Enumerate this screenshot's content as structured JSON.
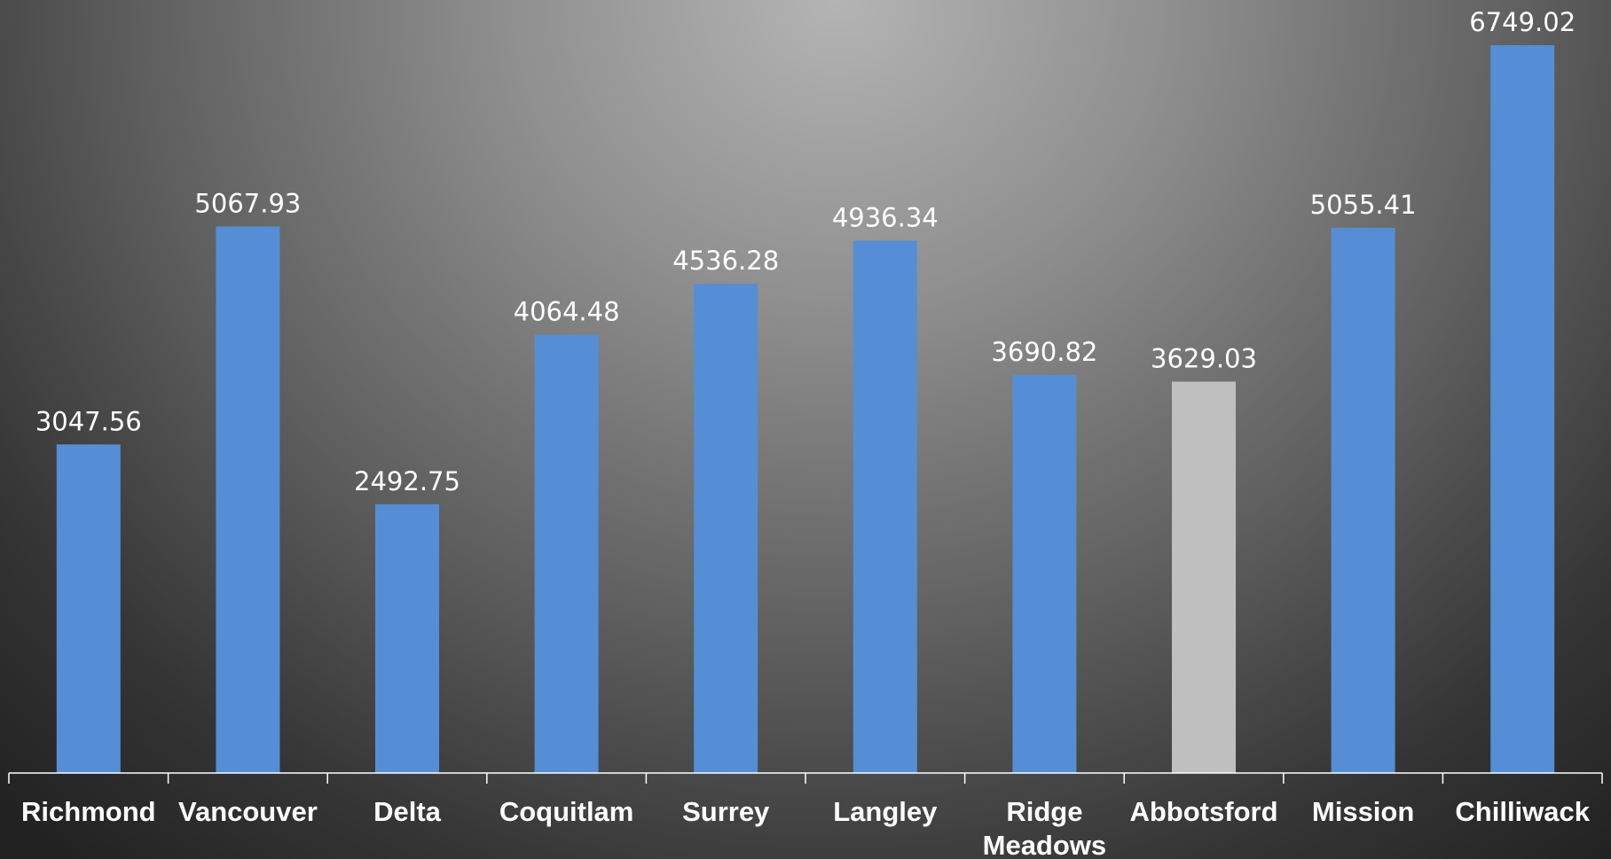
{
  "chart_data": {
    "type": "bar",
    "categories": [
      "Richmond",
      "Vancouver",
      "Delta",
      "Coquitlam",
      "Surrey",
      "Langley",
      "Ridge Meadows",
      "Abbotsford",
      "Mission",
      "Chilliwack"
    ],
    "category_lines": [
      [
        "Richmond"
      ],
      [
        "Vancouver"
      ],
      [
        "Delta"
      ],
      [
        "Coquitlam"
      ],
      [
        "Surrey"
      ],
      [
        "Langley"
      ],
      [
        "Ridge",
        "Meadows"
      ],
      [
        "Abbotsford"
      ],
      [
        "Mission"
      ],
      [
        "Chilliwack"
      ]
    ],
    "values": [
      3047.56,
      5067.93,
      2492.75,
      4064.48,
      4536.28,
      4936.34,
      3690.82,
      3629.03,
      5055.41,
      6749.02
    ],
    "value_labels": [
      "3047.56",
      "5067.93",
      "2492.75",
      "4064.48",
      "4536.28",
      "4936.34",
      "3690.82",
      "3629.03",
      "5055.41",
      "6749.02"
    ],
    "highlight_index": 7,
    "title": "",
    "xlabel": "",
    "ylabel": "",
    "ylim": [
      0,
      6749.02
    ],
    "grid": false,
    "legend": "none",
    "colors": {
      "bar": "#558ed5",
      "highlight": "#bfbfbf",
      "text": "#ffffff",
      "axis": "#ffffff"
    }
  }
}
